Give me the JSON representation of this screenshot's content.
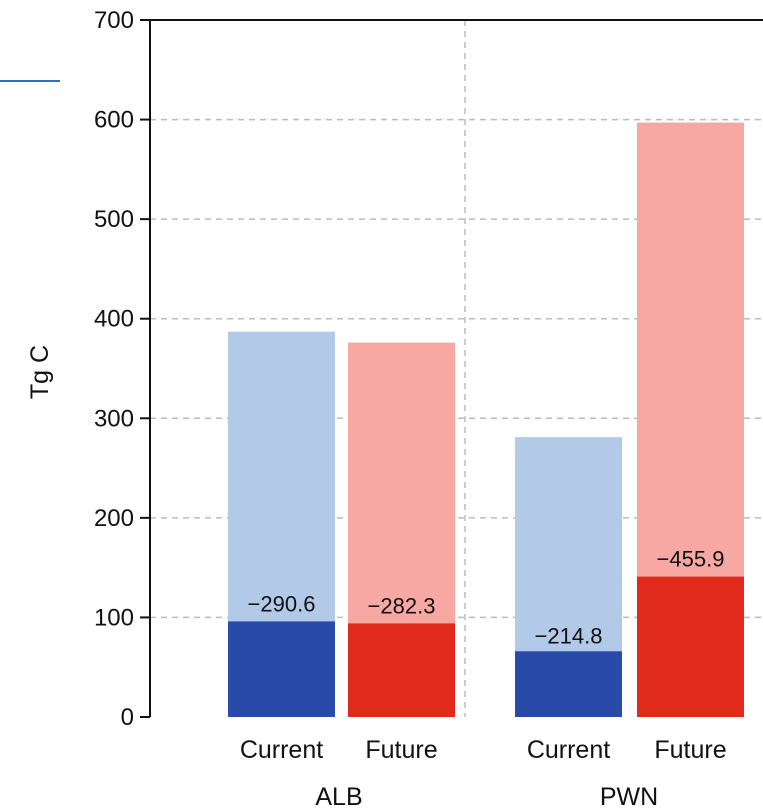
{
  "chart_data": {
    "type": "bar",
    "ylabel": "Tg C",
    "ylim": [
      0,
      700
    ],
    "yticks": [
      0,
      100,
      200,
      300,
      400,
      500,
      600,
      700
    ],
    "grid": true,
    "groups": [
      {
        "name": "ALB",
        "bars": [
          {
            "label": "Current",
            "total": 387,
            "lower": 96,
            "annotation": "−290.6",
            "color_light": "#b3c9e8",
            "color_dark": "#2a4aa8"
          },
          {
            "label": "Future",
            "total": 376,
            "lower": 94,
            "annotation": "−282.3",
            "color_light": "#f7a8a2",
            "color_dark": "#e02a1c"
          }
        ]
      },
      {
        "name": "PWN",
        "bars": [
          {
            "label": "Current",
            "total": 281,
            "lower": 66,
            "annotation": "−214.8",
            "color_light": "#b3c9e8",
            "color_dark": "#2a4aa8"
          },
          {
            "label": "Future",
            "total": 597,
            "lower": 141,
            "annotation": "−455.9",
            "color_light": "#f7a8a2",
            "color_dark": "#e02a1c"
          }
        ]
      }
    ]
  }
}
